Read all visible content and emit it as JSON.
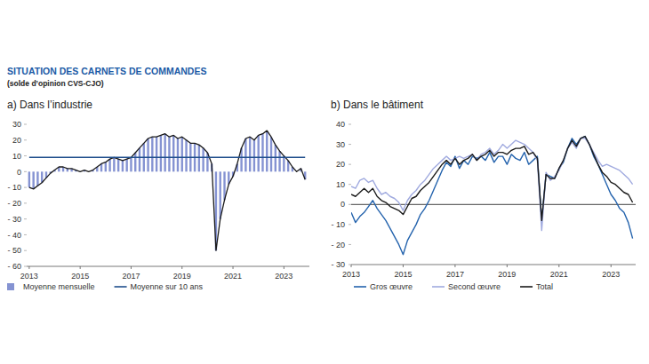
{
  "title": "SITUATION DES CARNETS DE COMMANDES",
  "subtitle": "(solde d’opinion CVS-CJO)",
  "chart_data": [
    {
      "type": "bar",
      "title": "a)  Dans l’industrie",
      "x": [
        2013,
        2013.167,
        2013.333,
        2013.5,
        2013.667,
        2013.833,
        2014,
        2014.167,
        2014.333,
        2014.5,
        2014.667,
        2014.833,
        2015,
        2015.167,
        2015.333,
        2015.5,
        2015.667,
        2015.833,
        2016,
        2016.167,
        2016.333,
        2016.5,
        2016.667,
        2016.833,
        2017,
        2017.167,
        2017.333,
        2017.5,
        2017.667,
        2017.833,
        2018,
        2018.167,
        2018.333,
        2018.5,
        2018.667,
        2018.833,
        2019,
        2019.167,
        2019.333,
        2019.5,
        2019.667,
        2019.833,
        2020,
        2020.167,
        2020.333,
        2020.5,
        2020.667,
        2020.833,
        2021,
        2021.167,
        2021.333,
        2021.5,
        2021.667,
        2021.833,
        2022,
        2022.167,
        2022.333,
        2022.5,
        2022.667,
        2022.833,
        2023,
        2023.167,
        2023.333,
        2023.5,
        2023.667,
        2023.833
      ],
      "series": [
        {
          "name": "Moyenne mensuelle",
          "type": "bar",
          "color": "#8593d2",
          "values": [
            -10,
            -11,
            -9,
            -7,
            -4,
            -1,
            1,
            3,
            3,
            2,
            2,
            1,
            0,
            1,
            0,
            1,
            3,
            5,
            6,
            8,
            9,
            8,
            7,
            8,
            9,
            12,
            15,
            18,
            21,
            22,
            22,
            23,
            24,
            22,
            23,
            21,
            22,
            20,
            18,
            18,
            17,
            15,
            12,
            5,
            -50,
            -30,
            -18,
            -8,
            -3,
            5,
            15,
            21,
            22,
            20,
            23,
            24,
            26,
            22,
            17,
            13,
            10,
            7,
            3,
            0,
            2,
            -5
          ]
        },
        {
          "name": "Moyenne sur 10 ans",
          "type": "line",
          "color": "#1f4e8c",
          "values": [
            9,
            9,
            9,
            9,
            9,
            9,
            9,
            9,
            9,
            9,
            9,
            9,
            9,
            9,
            9,
            9,
            9,
            9,
            9,
            9,
            9,
            9,
            9,
            9,
            9,
            9,
            9,
            9,
            9,
            9,
            9,
            9,
            9,
            9,
            9,
            9,
            9,
            9,
            9,
            9,
            9,
            9,
            9,
            9,
            9,
            9,
            9,
            9,
            9,
            9,
            9,
            9,
            9,
            9,
            9,
            9,
            9,
            9,
            9,
            9,
            9,
            9,
            9,
            9,
            9,
            9
          ]
        }
      ],
      "xlim": [
        2012.9,
        2024.0
      ],
      "xticks": [
        2013,
        2015,
        2017,
        2019,
        2021,
        2023
      ],
      "ylim": [
        -60,
        30
      ],
      "yticks": [
        {
          "value": -60,
          "label": "- 60"
        },
        {
          "value": -50,
          "label": "- 50"
        },
        {
          "value": -40,
          "label": "- 40"
        },
        {
          "value": -30,
          "label": "- 30"
        },
        {
          "value": -20,
          "label": "- 20"
        },
        {
          "value": -10,
          "label": "- 10"
        },
        0,
        10,
        20,
        30
      ],
      "grid": false,
      "legend": "bottom"
    },
    {
      "type": "line",
      "title": "b)  Dans le bâtiment",
      "x": [
        2013,
        2013.167,
        2013.333,
        2013.5,
        2013.667,
        2013.833,
        2014,
        2014.167,
        2014.333,
        2014.5,
        2014.667,
        2014.833,
        2015,
        2015.167,
        2015.333,
        2015.5,
        2015.667,
        2015.833,
        2016,
        2016.167,
        2016.333,
        2016.5,
        2016.667,
        2016.833,
        2017,
        2017.167,
        2017.333,
        2017.5,
        2017.667,
        2017.833,
        2018,
        2018.167,
        2018.333,
        2018.5,
        2018.667,
        2018.833,
        2019,
        2019.167,
        2019.333,
        2019.5,
        2019.667,
        2019.833,
        2020,
        2020.167,
        2020.333,
        2020.5,
        2020.667,
        2020.833,
        2021,
        2021.167,
        2021.333,
        2021.5,
        2021.667,
        2021.833,
        2022,
        2022.167,
        2022.333,
        2022.5,
        2022.667,
        2022.833,
        2023,
        2023.167,
        2023.333,
        2023.5,
        2023.667,
        2023.833
      ],
      "series": [
        {
          "name": "Gros œuvre",
          "color": "#2463ad",
          "values": [
            -4,
            -9,
            -6,
            -4,
            -1,
            2,
            -2,
            -5,
            -8,
            -12,
            -16,
            -20,
            -25,
            -18,
            -14,
            -10,
            -5,
            -2,
            2,
            7,
            12,
            17,
            21,
            19,
            24,
            18,
            22,
            20,
            24,
            23,
            24,
            22,
            26,
            21,
            24,
            24,
            20,
            25,
            23,
            22,
            26,
            20,
            22,
            24,
            -8,
            15,
            14,
            13,
            18,
            21,
            28,
            33,
            30,
            33,
            34,
            30,
            24,
            20,
            15,
            10,
            5,
            2,
            -2,
            -4,
            -9,
            -17
          ]
        },
        {
          "name": "Second œuvre",
          "color": "#a0aadf",
          "values": [
            9,
            8,
            12,
            13,
            11,
            12,
            8,
            5,
            6,
            4,
            3,
            1,
            -3,
            2,
            5,
            7,
            10,
            12,
            15,
            18,
            20,
            22,
            24,
            22,
            23,
            24,
            23,
            24,
            25,
            22,
            25,
            26,
            28,
            25,
            27,
            30,
            28,
            30,
            32,
            31,
            30,
            28,
            26,
            22,
            -13,
            16,
            12,
            14,
            17,
            22,
            28,
            31,
            28,
            33,
            33,
            30,
            26,
            22,
            19,
            20,
            19,
            18,
            17,
            15,
            13,
            10
          ]
        },
        {
          "name": "Total",
          "color": "#1a1a1a",
          "values": [
            5,
            4,
            6,
            8,
            6,
            8,
            4,
            2,
            1,
            -1,
            -2,
            -3,
            -5,
            -1,
            3,
            4,
            7,
            9,
            11,
            14,
            17,
            20,
            22,
            20,
            23,
            20,
            22,
            23,
            25,
            22,
            24,
            25,
            27,
            24,
            26,
            26,
            25,
            27,
            28,
            28,
            29,
            25,
            26,
            23,
            -8,
            15,
            13,
            13,
            18,
            22,
            28,
            32,
            29,
            33,
            34,
            30,
            25,
            20,
            16,
            14,
            11,
            10,
            8,
            6,
            5,
            1
          ]
        }
      ],
      "xlim": [
        2013,
        2023.95
      ],
      "xticks": [
        2013,
        2015,
        2017,
        2019,
        2021,
        2023
      ],
      "ylim": [
        -30,
        40
      ],
      "yticks": [
        {
          "value": -30,
          "label": "- 30"
        },
        {
          "value": -20,
          "label": "- 20"
        },
        {
          "value": -10,
          "label": "- 10"
        },
        0,
        10,
        20,
        30,
        40
      ],
      "grid": false,
      "legend": "bottom"
    }
  ]
}
